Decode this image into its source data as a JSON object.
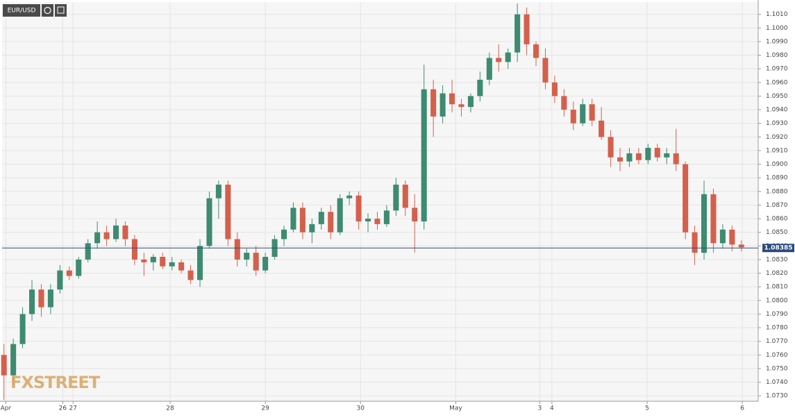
{
  "chart_data": {
    "type": "candlestick",
    "symbol": "EUR/USD",
    "watermark": "FXSTREET",
    "up_color": "#3d8b71",
    "down_color": "#d4604c",
    "last_color": "#2b4a7e",
    "last": 1.08385,
    "grid": true,
    "xlim": [
      -0.2,
      80.8
    ],
    "xticks": [
      {
        "value": 0.2,
        "label": "Apr"
      },
      {
        "value": 6.3,
        "label": "26"
      },
      {
        "value": 7.4,
        "label": "27"
      },
      {
        "value": 17.8,
        "label": "28"
      },
      {
        "value": 28,
        "label": "29"
      },
      {
        "value": 38.2,
        "label": "30"
      },
      {
        "value": 48.4,
        "label": "May"
      },
      {
        "value": 57.4,
        "label": "3"
      },
      {
        "value": 58.7,
        "label": "4"
      },
      {
        "value": 68.9,
        "label": "5"
      },
      {
        "value": 79.1,
        "label": "6"
      }
    ],
    "ylim": [
      1.0726,
      1.1019
    ],
    "yticks": [
      {
        "value": 1.073,
        "label": "1.0730"
      },
      {
        "value": 1.074,
        "label": "1.0740"
      },
      {
        "value": 1.075,
        "label": "1.0750"
      },
      {
        "value": 1.076,
        "label": "1.0760"
      },
      {
        "value": 1.077,
        "label": "1.0770"
      },
      {
        "value": 1.078,
        "label": "1.0780"
      },
      {
        "value": 1.079,
        "label": "1.0790"
      },
      {
        "value": 1.08,
        "label": "1.0800"
      },
      {
        "value": 1.081,
        "label": "1.0810"
      },
      {
        "value": 1.082,
        "label": "1.0820"
      },
      {
        "value": 1.083,
        "label": "1.0830"
      },
      {
        "value": 1.084,
        "label": "1.0840"
      },
      {
        "value": 1.085,
        "label": "1.0850"
      },
      {
        "value": 1.086,
        "label": "1.0860"
      },
      {
        "value": 1.087,
        "label": "1.0870"
      },
      {
        "value": 1.088,
        "label": "1.0880"
      },
      {
        "value": 1.089,
        "label": "1.0890"
      },
      {
        "value": 1.09,
        "label": "1.0900"
      },
      {
        "value": 1.091,
        "label": "1.0910"
      },
      {
        "value": 1.092,
        "label": "1.0920"
      },
      {
        "value": 1.093,
        "label": "1.0930"
      },
      {
        "value": 1.094,
        "label": "1.0940"
      },
      {
        "value": 1.095,
        "label": "1.0950"
      },
      {
        "value": 1.096,
        "label": "1.0960"
      },
      {
        "value": 1.097,
        "label": "1.0970"
      },
      {
        "value": 1.098,
        "label": "1.0980"
      },
      {
        "value": 1.099,
        "label": "1.0990"
      },
      {
        "value": 1.1,
        "label": "1.1000"
      },
      {
        "value": 1.101,
        "label": "1.1010"
      }
    ],
    "open": [
      1.076,
      1.0745,
      1.0768,
      1.079,
      1.0808,
      1.0795,
      1.0808,
      1.0822,
      1.0818,
      1.083,
      1.0842,
      1.085,
      1.0845,
      1.0855,
      1.0845,
      1.083,
      1.0828,
      1.0832,
      1.0825,
      1.0828,
      1.0822,
      1.0815,
      1.084,
      1.0875,
      1.0885,
      1.0845,
      1.083,
      1.0835,
      1.0822,
      1.0832,
      1.0845,
      1.0852,
      1.0868,
      1.085,
      1.0856,
      1.0865,
      1.085,
      1.0875,
      1.0877,
      1.0858,
      1.086,
      1.0856,
      1.0866,
      1.0885,
      1.0868,
      1.0858,
      1.0955,
      1.0935,
      1.0952,
      1.0944,
      1.0942,
      1.095,
      1.0962,
      1.0978,
      1.0975,
      1.0982,
      1.101,
      1.0988,
      1.0978,
      1.096,
      1.095,
      1.094,
      1.093,
      1.0944,
      1.0932,
      1.092,
      1.0905,
      1.0902,
      1.0908,
      1.0903,
      1.0912,
      1.0905,
      1.0908,
      1.09,
      1.085,
      1.0835,
      1.0878,
      1.0842,
      1.0852,
      1.0841
    ],
    "high": [
      1.0768,
      1.0772,
      1.0795,
      1.0815,
      1.0812,
      1.0812,
      1.0826,
      1.0825,
      1.0832,
      1.0845,
      1.0858,
      1.0855,
      1.086,
      1.0858,
      1.0848,
      1.0835,
      1.0834,
      1.0835,
      1.0832,
      1.083,
      1.0826,
      1.0845,
      1.088,
      1.0888,
      1.0888,
      1.085,
      1.0838,
      1.084,
      1.0835,
      1.0848,
      1.0855,
      1.0872,
      1.0872,
      1.086,
      1.0868,
      1.087,
      1.0878,
      1.088,
      1.088,
      1.0864,
      1.0865,
      1.087,
      1.089,
      1.0888,
      1.0878,
      1.0973,
      1.0962,
      1.0958,
      1.0962,
      1.0948,
      1.0952,
      1.0968,
      1.0982,
      1.0988,
      1.0985,
      1.1018,
      1.1015,
      1.099,
      1.0985,
      1.0965,
      1.0955,
      1.0946,
      1.0948,
      1.0948,
      1.0942,
      1.0925,
      1.0912,
      1.0912,
      1.0912,
      1.0915,
      1.0915,
      1.0912,
      1.0926,
      1.0902,
      1.0855,
      1.0888,
      1.0882,
      1.0856,
      1.0855,
      1.0844
    ],
    "low": [
      1.0727,
      1.0738,
      1.0765,
      1.0785,
      1.0788,
      1.079,
      1.0805,
      1.0815,
      1.0816,
      1.0828,
      1.0838,
      1.084,
      1.0843,
      1.084,
      1.0826,
      1.0818,
      1.0822,
      1.0823,
      1.0822,
      1.082,
      1.0812,
      1.081,
      1.0838,
      1.086,
      1.084,
      1.0825,
      1.0825,
      1.0818,
      1.082,
      1.083,
      1.084,
      1.085,
      1.0845,
      1.0842,
      1.0852,
      1.0845,
      1.0848,
      1.087,
      1.0852,
      1.085,
      1.0852,
      1.0854,
      1.0862,
      1.0862,
      1.0835,
      1.0852,
      1.092,
      1.093,
      1.0938,
      1.0935,
      1.0938,
      1.0946,
      1.0958,
      1.0968,
      1.097,
      1.0975,
      1.098,
      1.0972,
      1.0955,
      1.0945,
      1.0935,
      1.0925,
      1.0928,
      1.0928,
      1.0918,
      1.0898,
      1.0895,
      1.0898,
      1.09,
      1.09,
      1.0902,
      1.09,
      1.0895,
      1.0845,
      1.0826,
      1.083,
      1.0835,
      1.0838,
      1.0836,
      1.0836
    ],
    "close": [
      1.0745,
      1.0768,
      1.079,
      1.0808,
      1.0795,
      1.0808,
      1.0822,
      1.0818,
      1.083,
      1.0842,
      1.085,
      1.0845,
      1.0855,
      1.0845,
      1.083,
      1.0828,
      1.0832,
      1.0825,
      1.0828,
      1.0822,
      1.0815,
      1.084,
      1.0875,
      1.0885,
      1.0845,
      1.083,
      1.0835,
      1.0822,
      1.0832,
      1.0845,
      1.0852,
      1.0868,
      1.085,
      1.0856,
      1.0865,
      1.085,
      1.0875,
      1.0877,
      1.0858,
      1.086,
      1.0856,
      1.0866,
      1.0885,
      1.0868,
      1.0858,
      1.0955,
      1.0935,
      1.0952,
      1.0944,
      1.0942,
      1.095,
      1.0962,
      1.0978,
      1.0975,
      1.0982,
      1.101,
      1.0988,
      1.0978,
      1.096,
      1.095,
      1.094,
      1.093,
      1.0944,
      1.0932,
      1.092,
      1.0905,
      1.0902,
      1.0908,
      1.0903,
      1.0912,
      1.0905,
      1.0908,
      1.09,
      1.085,
      1.0835,
      1.0878,
      1.0842,
      1.0852,
      1.0841,
      1.0839
    ]
  }
}
